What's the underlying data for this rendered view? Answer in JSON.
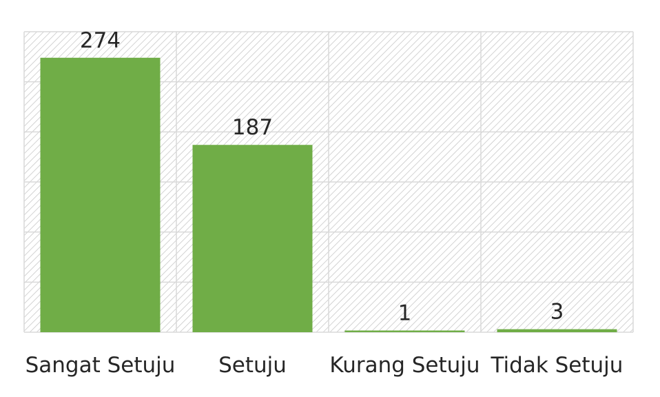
{
  "chart_data": {
    "type": "bar",
    "categories": [
      "Sangat Setuju",
      "Setuju",
      "Kurang Setuju",
      "Tidak Setuju"
    ],
    "values": [
      274,
      187,
      1,
      3
    ],
    "value_labels": [
      "274",
      "187",
      "1",
      "3"
    ],
    "title": "",
    "xlabel": "",
    "ylabel": "",
    "ylim": [
      0,
      300
    ],
    "grid": true,
    "legend": "none",
    "bar_color": "#70ad47",
    "grid_color": "#d9d9d9"
  }
}
